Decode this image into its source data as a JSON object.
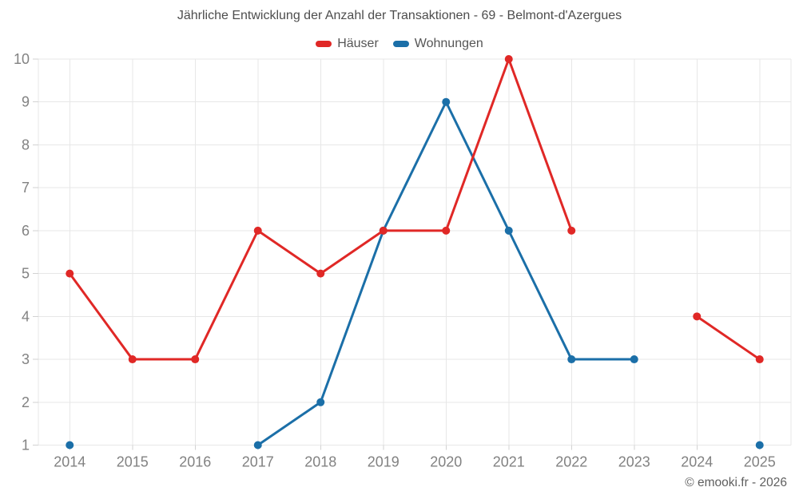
{
  "title": "Jährliche Entwicklung der Anzahl der Transaktionen - 69 - Belmont-d'Azergues",
  "copyright": "© emooki.fr - 2026",
  "chart_data": {
    "type": "line",
    "title": "Jährliche Entwicklung der Anzahl der Transaktionen - 69 - Belmont-d'Azergues",
    "categories": [
      "2014",
      "2015",
      "2016",
      "2017",
      "2018",
      "2019",
      "2020",
      "2021",
      "2022",
      "2023",
      "2024",
      "2025"
    ],
    "series": [
      {
        "name": "Häuser",
        "color": "#e02826",
        "values": [
          5,
          3,
          3,
          6,
          5,
          6,
          6,
          10,
          6,
          null,
          4,
          3
        ]
      },
      {
        "name": "Wohnungen",
        "color": "#1b6fa8",
        "values": [
          1,
          null,
          null,
          1,
          2,
          6,
          9,
          6,
          3,
          3,
          null,
          1
        ]
      }
    ],
    "ylim": [
      1,
      10
    ],
    "yticks": [
      1,
      2,
      3,
      4,
      5,
      6,
      7,
      8,
      9,
      10
    ],
    "grid": true,
    "legend_position": "top",
    "marker_radius": 5,
    "line_width": 3
  },
  "colors": {
    "background": "#ffffff",
    "grid": "#e7e7e7",
    "tick": "#d2d2d2",
    "axis_label": "#828282",
    "title": "#4d4d4d",
    "legend_label": "#555555",
    "copyright": "#5f5f5f"
  }
}
